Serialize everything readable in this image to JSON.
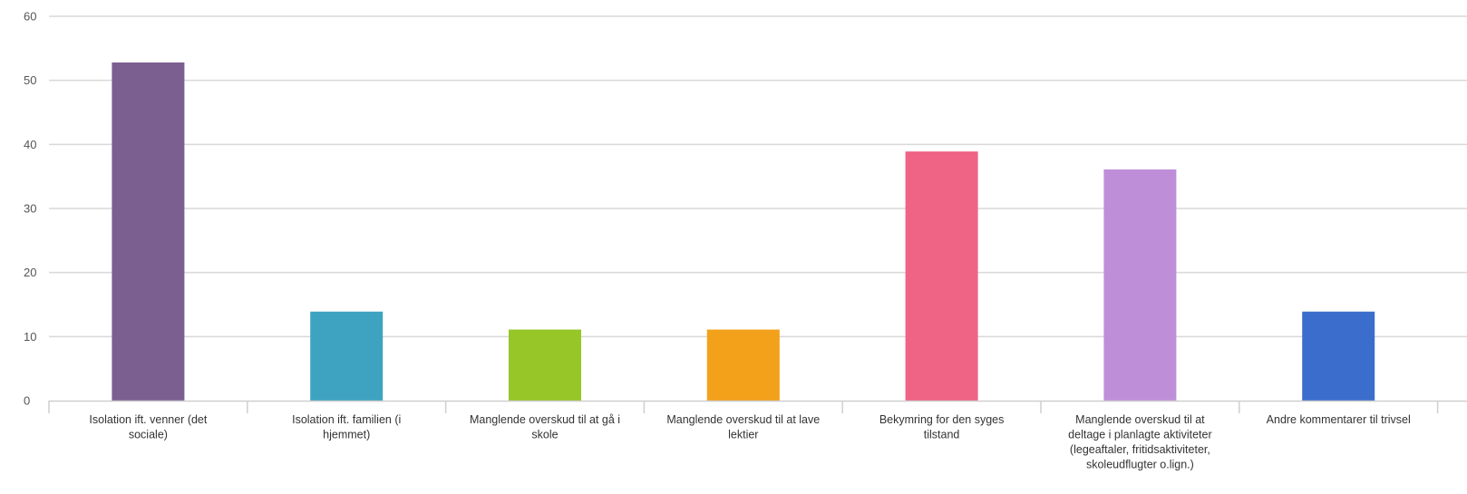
{
  "chart_data": {
    "type": "bar",
    "categories": [
      [
        "Isolation ift. venner (det",
        "sociale)"
      ],
      [
        "Isolation ift. familien (i",
        "hjemmet)"
      ],
      [
        "Manglende overskud til at gå i",
        "skole"
      ],
      [
        "Manglende overskud til at lave",
        "lektier"
      ],
      [
        "Bekymring for den syges",
        "tilstand"
      ],
      [
        "Manglende overskud til at",
        "deltage i planlagte aktiviteter",
        "(legeaftaler, fritidsaktiviteter,",
        "skoleudflugter o.lign.)"
      ],
      [
        "Andre kommentarer til trivsel"
      ]
    ],
    "values": [
      52.8,
      13.9,
      11.1,
      11.1,
      38.9,
      36.1,
      13.9
    ],
    "colors": [
      "#7b5f91",
      "#3ea3c1",
      "#96c627",
      "#f3a11b",
      "#ef6385",
      "#be8fd8",
      "#3b6dcc"
    ],
    "ylim": [
      0,
      60
    ],
    "yticks": [
      0,
      10,
      20,
      30,
      40,
      50,
      60
    ],
    "grid": true,
    "title": "",
    "xlabel": "",
    "ylabel": ""
  }
}
